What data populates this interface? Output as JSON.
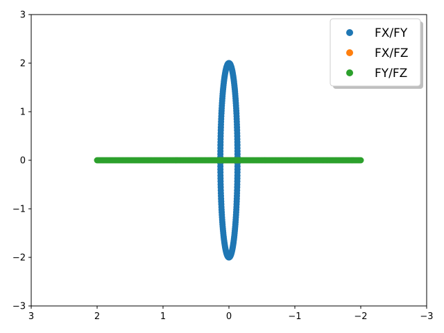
{
  "chart_data": {
    "type": "scatter",
    "title": "",
    "xlabel": "",
    "ylabel": "",
    "xlim": [
      3,
      -3
    ],
    "ylim": [
      -3,
      3
    ],
    "x_inverted": true,
    "grid": false,
    "legend_position": "upper right",
    "x_ticks": [
      3,
      2,
      1,
      0,
      -1,
      -2,
      -3
    ],
    "y_ticks": [
      -3,
      -2,
      -1,
      0,
      1,
      2,
      3
    ],
    "x_tick_labels": [
      "3",
      "2",
      "1",
      "0",
      "−1",
      "−2",
      "−3"
    ],
    "y_tick_labels": [
      "−3",
      "−2",
      "−1",
      "0",
      "1",
      "2",
      "3"
    ],
    "series": [
      {
        "name": "FX/FY",
        "color": "#1f77b4",
        "shape": "ellipse",
        "center": [
          0,
          0
        ],
        "x_semi_axis": 0.13,
        "y_semi_axis": 2.0,
        "n_points": 200
      },
      {
        "name": "FX/FZ",
        "color": "#ff7f0e",
        "shape": "segment",
        "x_range": [
          -0.13,
          0.13
        ],
        "y_value": 0,
        "n_points": 200
      },
      {
        "name": "FY/FZ",
        "color": "#2ca02c",
        "shape": "segment",
        "x_range": [
          -2.0,
          2.0
        ],
        "y_value": 0,
        "n_points": 200
      }
    ]
  }
}
